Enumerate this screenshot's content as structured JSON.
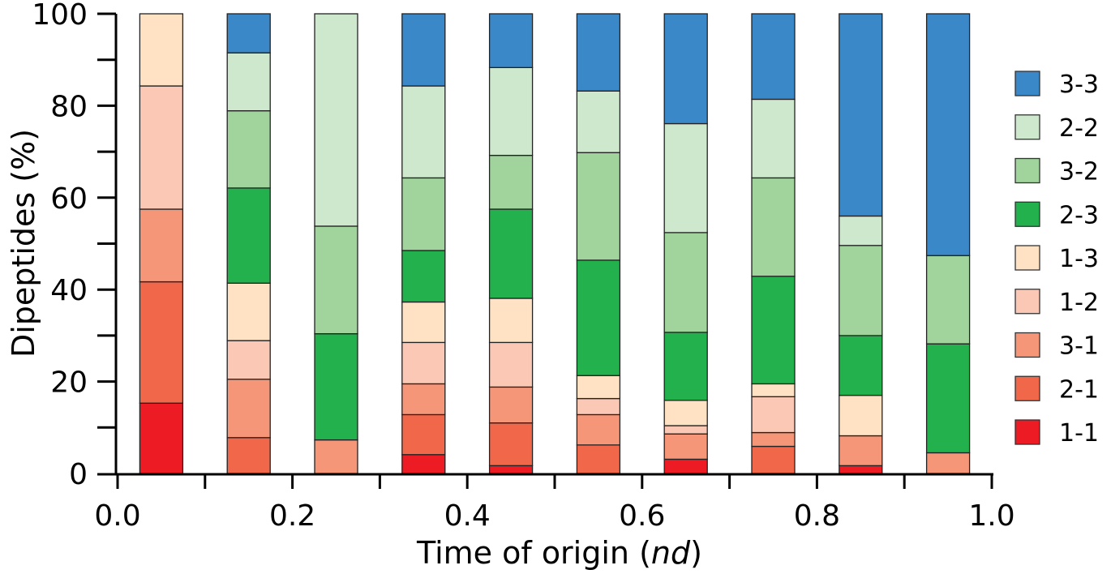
{
  "chart_data": {
    "type": "bar",
    "stacked": true,
    "title": "",
    "xlabel": "Time of origin (nd)",
    "xlabel_italic_part": "nd",
    "ylabel": "Dipeptides (%)",
    "xlim": [
      0.0,
      1.0
    ],
    "ylim": [
      0,
      100
    ],
    "xticks": [
      "0.0",
      "0.2",
      "0.4",
      "0.6",
      "0.8",
      "1.0"
    ],
    "yticks": [
      "0",
      "20",
      "40",
      "60",
      "80",
      "100"
    ],
    "grid": false,
    "legend_position": "right",
    "x": [
      0.05,
      0.15,
      0.25,
      0.35,
      0.45,
      0.55,
      0.65,
      0.75,
      0.85,
      0.95
    ],
    "series": [
      {
        "name": "1-1",
        "color": "#ed1c24",
        "values": [
          15.3,
          0,
          0,
          4.1,
          1.7,
          0,
          3.1,
          0,
          1.7,
          0
        ]
      },
      {
        "name": "2-1",
        "color": "#f0674a",
        "values": [
          26.4,
          7.8,
          0,
          8.7,
          9.3,
          6.2,
          0,
          5.9,
          0,
          0
        ]
      },
      {
        "name": "3-1",
        "color": "#f59678",
        "values": [
          15.8,
          12.7,
          7.3,
          6.7,
          7.8,
          6.6,
          5.5,
          3.0,
          6.5,
          4.5
        ]
      },
      {
        "name": "1-2",
        "color": "#fac8b4",
        "values": [
          26.8,
          8.4,
          0,
          9.0,
          9.7,
          3.5,
          1.8,
          7.8,
          0,
          0
        ]
      },
      {
        "name": "1-3",
        "color": "#fee2c3",
        "values": [
          15.7,
          12.5,
          0,
          8.8,
          9.6,
          5.0,
          5.5,
          2.8,
          8.8,
          0
        ]
      },
      {
        "name": "2-3",
        "color": "#22b14c",
        "values": [
          0,
          20.7,
          23.1,
          11.2,
          19.4,
          25.1,
          14.8,
          23.4,
          13.0,
          23.7
        ]
      },
      {
        "name": "3-2",
        "color": "#a0d49c",
        "values": [
          0,
          16.8,
          23.4,
          15.8,
          11.7,
          23.4,
          21.7,
          21.4,
          19.6,
          19.2
        ]
      },
      {
        "name": "2-2",
        "color": "#cde8cd",
        "values": [
          0,
          12.6,
          46.2,
          20.0,
          19.1,
          13.4,
          23.7,
          17.1,
          6.4,
          0
        ]
      },
      {
        "name": "3-3",
        "color": "#3b88c8",
        "values": [
          0,
          8.5,
          0,
          15.7,
          11.7,
          16.8,
          23.9,
          18.6,
          44.0,
          52.6
        ]
      }
    ]
  }
}
